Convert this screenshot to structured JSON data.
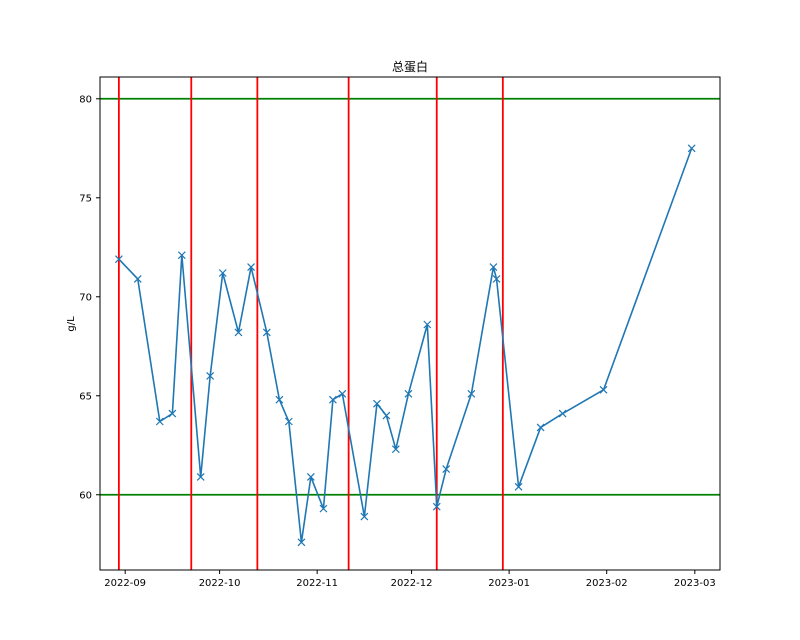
{
  "chart_data": {
    "type": "line",
    "title": "总蛋白",
    "xlabel": "",
    "ylabel": "g/L",
    "xlim": [
      "2022-08-24",
      "2023-03-09"
    ],
    "ylim": [
      56.2,
      81.1
    ],
    "grid": false,
    "legend": "none",
    "x_ticks": [
      {
        "date": "2022-09-01",
        "label": "2022-09"
      },
      {
        "date": "2022-10-01",
        "label": "2022-10"
      },
      {
        "date": "2022-11-01",
        "label": "2022-11"
      },
      {
        "date": "2022-12-01",
        "label": "2022-12"
      },
      {
        "date": "2023-01-01",
        "label": "2023-01"
      },
      {
        "date": "2023-02-01",
        "label": "2023-02"
      },
      {
        "date": "2023-03-01",
        "label": "2023-03"
      }
    ],
    "y_ticks": [
      60,
      65,
      70,
      75,
      80
    ],
    "series": [
      {
        "color": "#1f77b4",
        "marker": "x",
        "points": [
          {
            "x": "2022-08-30",
            "y": 71.9
          },
          {
            "x": "2022-09-05",
            "y": 70.9
          },
          {
            "x": "2022-09-12",
            "y": 63.7
          },
          {
            "x": "2022-09-16",
            "y": 64.1
          },
          {
            "x": "2022-09-19",
            "y": 72.1
          },
          {
            "x": "2022-09-25",
            "y": 60.9
          },
          {
            "x": "2022-09-28",
            "y": 66.0
          },
          {
            "x": "2022-10-02",
            "y": 71.2
          },
          {
            "x": "2022-10-07",
            "y": 68.2
          },
          {
            "x": "2022-10-11",
            "y": 71.5
          },
          {
            "x": "2022-10-16",
            "y": 68.2
          },
          {
            "x": "2022-10-20",
            "y": 64.8
          },
          {
            "x": "2022-10-23",
            "y": 63.7
          },
          {
            "x": "2022-10-27",
            "y": 57.6
          },
          {
            "x": "2022-10-30",
            "y": 60.9
          },
          {
            "x": "2022-11-03",
            "y": 59.3
          },
          {
            "x": "2022-11-06",
            "y": 64.8
          },
          {
            "x": "2022-11-09",
            "y": 65.1
          },
          {
            "x": "2022-11-16",
            "y": 58.9
          },
          {
            "x": "2022-11-20",
            "y": 64.6
          },
          {
            "x": "2022-11-23",
            "y": 64.0
          },
          {
            "x": "2022-11-26",
            "y": 62.3
          },
          {
            "x": "2022-11-30",
            "y": 65.1
          },
          {
            "x": "2022-12-06",
            "y": 68.6
          },
          {
            "x": "2022-12-09",
            "y": 59.4
          },
          {
            "x": "2022-12-12",
            "y": 61.3
          },
          {
            "x": "2022-12-20",
            "y": 65.1
          },
          {
            "x": "2022-12-27",
            "y": 71.5
          },
          {
            "x": "2022-12-28",
            "y": 70.9
          },
          {
            "x": "2023-01-04",
            "y": 60.4
          },
          {
            "x": "2023-01-11",
            "y": 63.4
          },
          {
            "x": "2023-01-18",
            "y": 64.1
          },
          {
            "x": "2023-01-31",
            "y": 65.3
          },
          {
            "x": "2023-02-28",
            "y": 77.5
          }
        ]
      }
    ],
    "hlines": [
      {
        "y": 80,
        "color": "#008000"
      },
      {
        "y": 60,
        "color": "#008000"
      }
    ],
    "vlines": [
      {
        "x": "2022-08-30",
        "color": "#ff0000"
      },
      {
        "x": "2022-09-22",
        "color": "#ff0000"
      },
      {
        "x": "2022-10-13",
        "color": "#ff0000"
      },
      {
        "x": "2022-11-11",
        "color": "#ff0000"
      },
      {
        "x": "2022-12-09",
        "color": "#ff0000"
      },
      {
        "x": "2022-12-30",
        "color": "#ff0000"
      }
    ]
  }
}
